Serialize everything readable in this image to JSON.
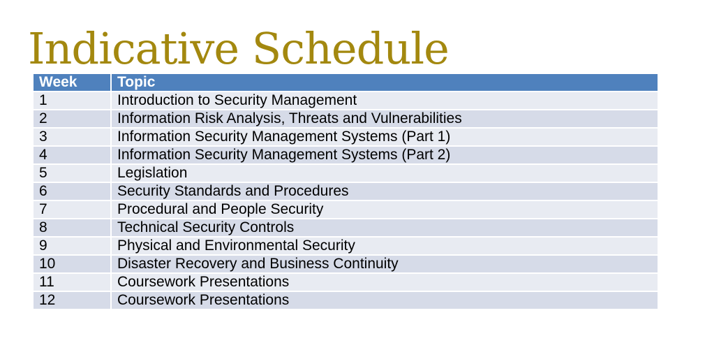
{
  "title": "Indicative Schedule",
  "colors": {
    "title": "#a3880f",
    "header_bg": "#4f81bd",
    "header_text": "#ffffff",
    "row_light": "#e8ebf2",
    "row_dark": "#d6dbe8"
  },
  "table": {
    "headers": [
      "Week",
      "Topic"
    ],
    "rows": [
      [
        "1",
        "Introduction to Security Management"
      ],
      [
        "2",
        "Information Risk Analysis, Threats and Vulnerabilities"
      ],
      [
        "3",
        "Information Security Management Systems (Part 1)"
      ],
      [
        "4",
        "Information Security Management Systems (Part 2)"
      ],
      [
        "5",
        "Legislation"
      ],
      [
        "6",
        "Security Standards and Procedures"
      ],
      [
        "7",
        "Procedural and People Security"
      ],
      [
        "8",
        "Technical Security Controls"
      ],
      [
        "9",
        "Physical and Environmental Security"
      ],
      [
        "10",
        "Disaster Recovery and Business Continuity"
      ],
      [
        "11",
        "Coursework Presentations"
      ],
      [
        "12",
        "Coursework Presentations"
      ]
    ]
  }
}
